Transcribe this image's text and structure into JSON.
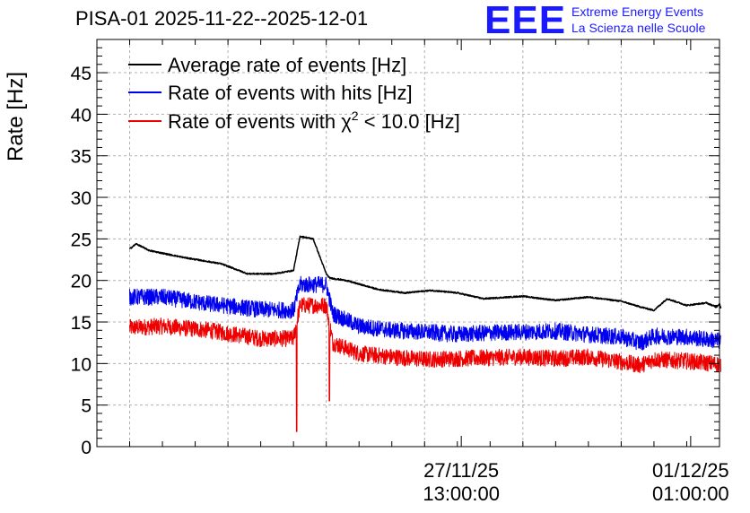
{
  "header": {
    "title": "PISA-01 2025-11-22--2025-12-01",
    "logo": "EEE",
    "logo_line1": "Extreme Energy Events",
    "logo_line2": "La Scienza nelle Scuole"
  },
  "chart_data": {
    "type": "line",
    "title": "PISA-01 2025-11-22--2025-12-01",
    "xlabel": "",
    "ylabel": "Rate [Hz]",
    "ylim": [
      0,
      49
    ],
    "yticks": [
      0,
      5,
      10,
      15,
      20,
      25,
      30,
      35,
      40,
      45
    ],
    "xlim_days": [
      -0.5,
      9.0
    ],
    "xticks": [
      {
        "day": 5.06,
        "label_date": "27/11/25",
        "label_time": "13:00:00"
      },
      {
        "day": 8.56,
        "label_date": "01/12/25",
        "label_time": "01:00:00"
      }
    ],
    "legend_position": "top-left",
    "series": [
      {
        "name": "Average rate of events [Hz]",
        "color": "#000000",
        "noise": 0.08,
        "x": [
          0,
          0.1,
          0.3,
          0.8,
          1.4,
          1.8,
          2.2,
          2.5,
          2.6,
          2.8,
          3.0,
          3.05,
          3.3,
          3.8,
          4.2,
          4.6,
          5.0,
          5.4,
          6.0,
          6.5,
          7.0,
          7.5,
          7.8,
          8.0,
          8.2,
          8.5,
          8.8,
          9.0,
          8.95,
          9.02
        ],
        "y": [
          23.8,
          24.4,
          23.6,
          22.8,
          22.0,
          20.8,
          20.8,
          21.2,
          25.3,
          25.0,
          20.8,
          20.3,
          20.0,
          18.9,
          18.5,
          18.8,
          18.5,
          17.8,
          18.1,
          17.6,
          18.0,
          17.5,
          16.8,
          16.4,
          17.8,
          17.0,
          17.3,
          17.2,
          16.8,
          16.7
        ]
      },
      {
        "name": "Rate of events with hits [Hz]",
        "color": "#0000ee",
        "noise": 1.0,
        "x": [
          0,
          0.5,
          1.2,
          2.0,
          2.5,
          2.6,
          3.0,
          3.1,
          3.5,
          4.0,
          4.5,
          5.0,
          5.5,
          6.0,
          6.5,
          7.0,
          7.5,
          7.8,
          8.0,
          8.5,
          9.02
        ],
        "y": [
          18.0,
          18.0,
          17.2,
          16.5,
          16.4,
          19.5,
          19.5,
          16.0,
          14.5,
          14.0,
          13.8,
          13.5,
          13.7,
          13.8,
          13.9,
          13.5,
          13.2,
          12.5,
          13.3,
          13.2,
          12.7
        ]
      },
      {
        "name": "Rate of events with χ² < 10.0 [Hz]",
        "color": "#ee0000",
        "noise": 1.0,
        "x": [
          0,
          0.5,
          1.2,
          2.0,
          2.5,
          2.6,
          3.0,
          3.1,
          3.5,
          4.0,
          4.5,
          5.0,
          5.5,
          6.0,
          6.5,
          7.0,
          7.5,
          7.8,
          8.0,
          8.5,
          9.02
        ],
        "y": [
          14.3,
          14.5,
          14.0,
          13.0,
          13.0,
          17.0,
          17.0,
          12.5,
          11.2,
          10.8,
          10.5,
          10.6,
          10.7,
          10.8,
          10.6,
          10.8,
          10.2,
          9.8,
          10.5,
          10.3,
          9.9
        ],
        "dips": [
          {
            "x": 2.55,
            "y": 1.8
          },
          {
            "x": 3.05,
            "y": 5.5
          }
        ]
      }
    ]
  },
  "legend": {
    "avg": "Average rate of events [Hz]",
    "hits": "Rate of events with hits [Hz]",
    "chi2_prefix": "Rate of events with ",
    "chi2_chi": "χ",
    "chi2_sup": "2",
    "chi2_suffix": " < 10.0 [Hz]"
  }
}
